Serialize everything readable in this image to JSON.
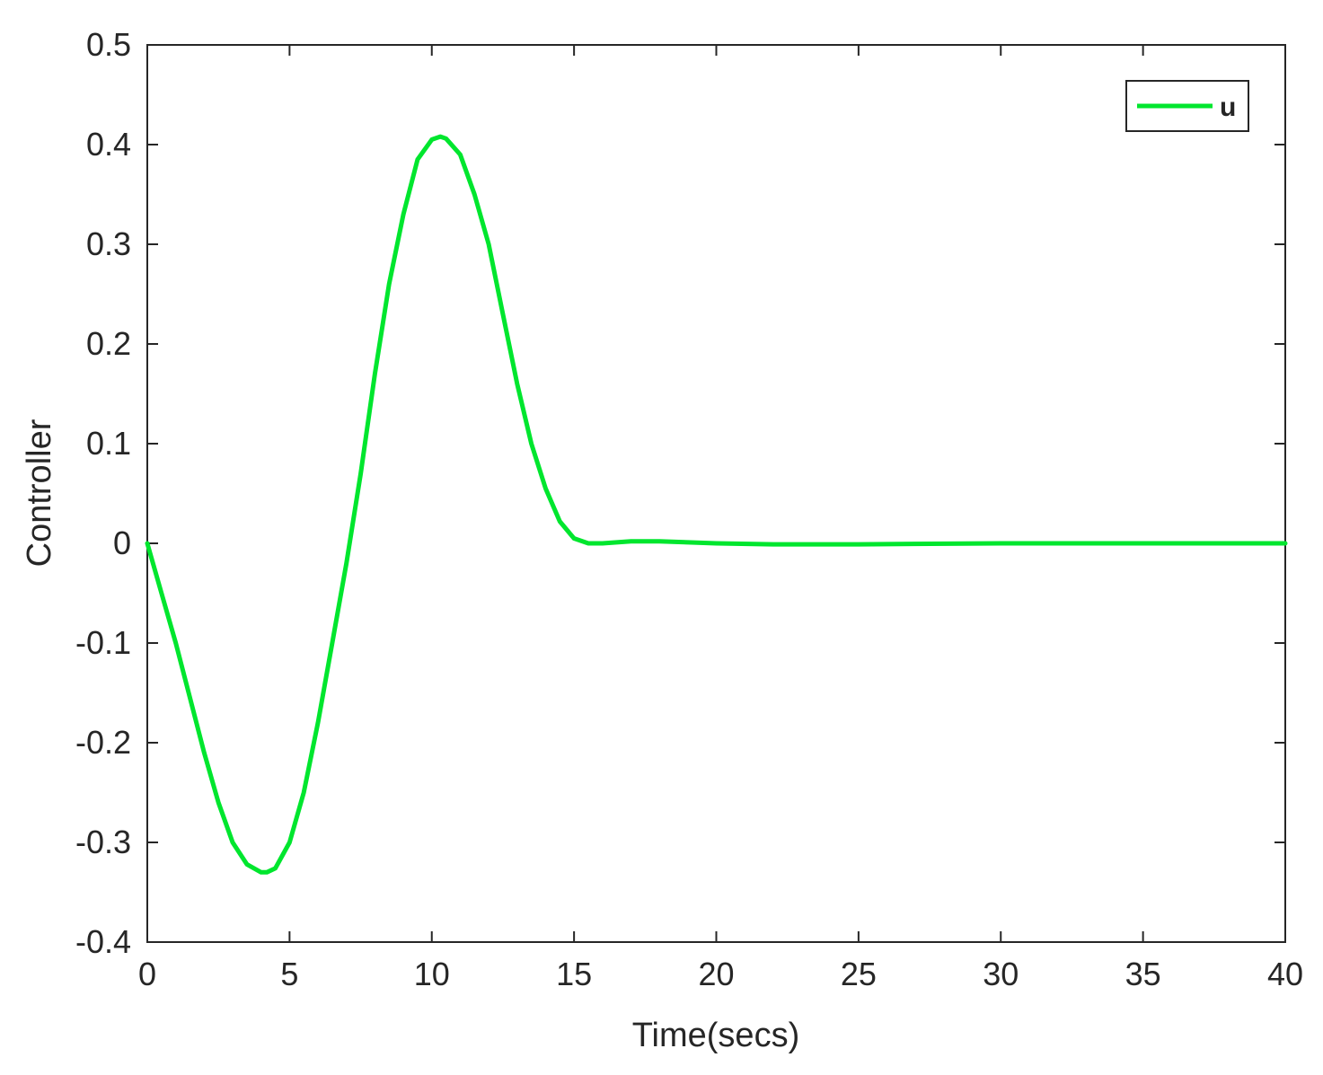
{
  "chart_data": {
    "type": "line",
    "title": "",
    "xlabel": "Time(secs)",
    "ylabel": "Controller",
    "xlim": [
      0,
      40
    ],
    "ylim": [
      -0.4,
      0.5
    ],
    "xticks": [
      0,
      5,
      10,
      15,
      20,
      25,
      30,
      35,
      40
    ],
    "yticks": [
      -0.4,
      -0.3,
      -0.2,
      -0.1,
      0,
      0.1,
      0.2,
      0.3,
      0.4,
      0.5
    ],
    "xtick_labels": [
      "0",
      "5",
      "10",
      "15",
      "20",
      "25",
      "30",
      "35",
      "40"
    ],
    "ytick_labels": [
      "-0.4",
      "-0.3",
      "-0.2",
      "-0.1",
      "0",
      "0.1",
      "0.2",
      "0.3",
      "0.4",
      "0.5"
    ],
    "grid": false,
    "legend_position": "top-right",
    "series": [
      {
        "name": "u",
        "color": "#00e62e",
        "x": [
          0,
          0.5,
          1,
          1.5,
          2,
          2.5,
          3,
          3.5,
          4,
          4.2,
          4.5,
          5,
          5.5,
          6,
          6.5,
          7,
          7.5,
          8,
          8.5,
          9,
          9.5,
          10,
          10.3,
          10.5,
          11,
          11.5,
          12,
          12.5,
          13,
          13.5,
          14,
          14.5,
          15,
          15.5,
          16,
          17,
          18,
          19,
          20,
          22,
          25,
          30,
          35,
          40
        ],
        "y": [
          0,
          -0.05,
          -0.1,
          -0.155,
          -0.21,
          -0.26,
          -0.3,
          -0.322,
          -0.33,
          -0.33,
          -0.326,
          -0.3,
          -0.25,
          -0.18,
          -0.1,
          -0.02,
          0.07,
          0.17,
          0.26,
          0.33,
          0.385,
          0.405,
          0.408,
          0.406,
          0.39,
          0.35,
          0.3,
          0.23,
          0.16,
          0.1,
          0.055,
          0.022,
          0.005,
          0.0,
          0.0,
          0.002,
          0.002,
          0.001,
          0.0,
          -0.001,
          -0.001,
          0.0,
          0.0,
          0.0
        ]
      }
    ]
  }
}
